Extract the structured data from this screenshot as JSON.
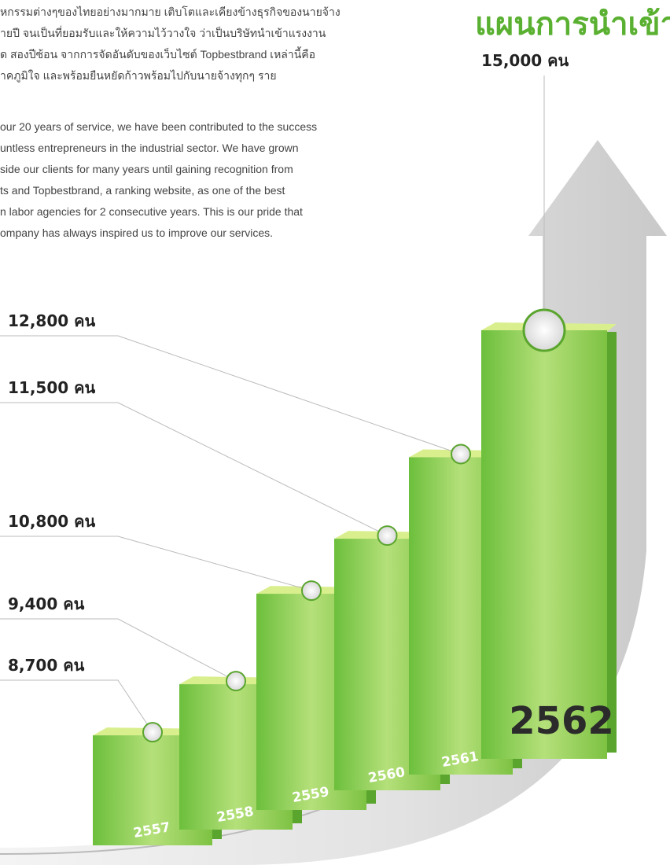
{
  "thai_paragraph": [
    "หกรรมต่างๆของไทยอย่างมากมาย เติบโตและเคียงข้างธุรกิจของนายจ้าง",
    "ายปี จนเป็นที่ยอมรับและให้ความไว้วางใจ ว่าเป็นบริษัทนำเข้าแรงงาน",
    "ด สองปีซ้อน จากการจัดอันดับของเว็บไซต์ Topbestbrand เหล่านี้คือ",
    "าคภูมิใจ และพร้อมยืนหยัดก้าวพร้อมไปกับนายจ้างทุกๆ ราย"
  ],
  "english_paragraph": [
    "our 20 years of service, we have been contributed to the success",
    "untless entrepreneurs in the industrial sector. We have grown",
    "side our clients for many years until gaining recognition from",
    "ts and Topbestbrand, a ranking website, as one of the best",
    "n labor agencies for 2 consecutive years. This is our pride that",
    "ompany has always inspired us to improve our services."
  ],
  "chart_data": {
    "type": "bar",
    "title": "แผนการนำเข้า",
    "categories": [
      "2557",
      "2558",
      "2559",
      "2560",
      "2561",
      "2562"
    ],
    "values": [
      8700,
      9400,
      10800,
      11500,
      12800,
      15000
    ],
    "value_labels": [
      "8,700 คน",
      "9,400 คน",
      "10,800 คน",
      "11,500 คน",
      "12,800 คน",
      "15,000 คน"
    ],
    "color": "#7dc243"
  }
}
